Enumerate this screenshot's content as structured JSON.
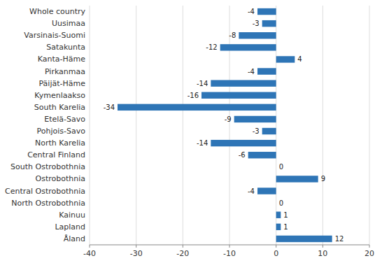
{
  "chart_data": {
    "type": "bar",
    "orientation": "horizontal",
    "categories": [
      "Whole country",
      "Uusimaa",
      "Varsinais-Suomi",
      "Satakunta",
      "Kanta-Häme",
      "Pirkanmaa",
      "Päijät-Häme",
      "Kymenlaakso",
      "South Karelia",
      "Etelä-Savo",
      "Pohjois-Savo",
      "North Karelia",
      "Central Finland",
      "South Ostrobothnia",
      "Ostrobothnia",
      "Central Ostrobothnia",
      "North Ostrobothnia",
      "Kainuu",
      "Lapland",
      "Åland"
    ],
    "values": [
      -4,
      -3,
      -8,
      -12,
      4,
      -4,
      -14,
      -16,
      -34,
      -9,
      -3,
      -14,
      -6,
      0,
      9,
      -4,
      0,
      1,
      1,
      12
    ],
    "color": "#2E75B6",
    "xlim": [
      -40,
      20
    ],
    "xticks": [
      -40,
      -30,
      -20,
      -10,
      0,
      10,
      20
    ],
    "grid": true,
    "data_labels": true
  }
}
